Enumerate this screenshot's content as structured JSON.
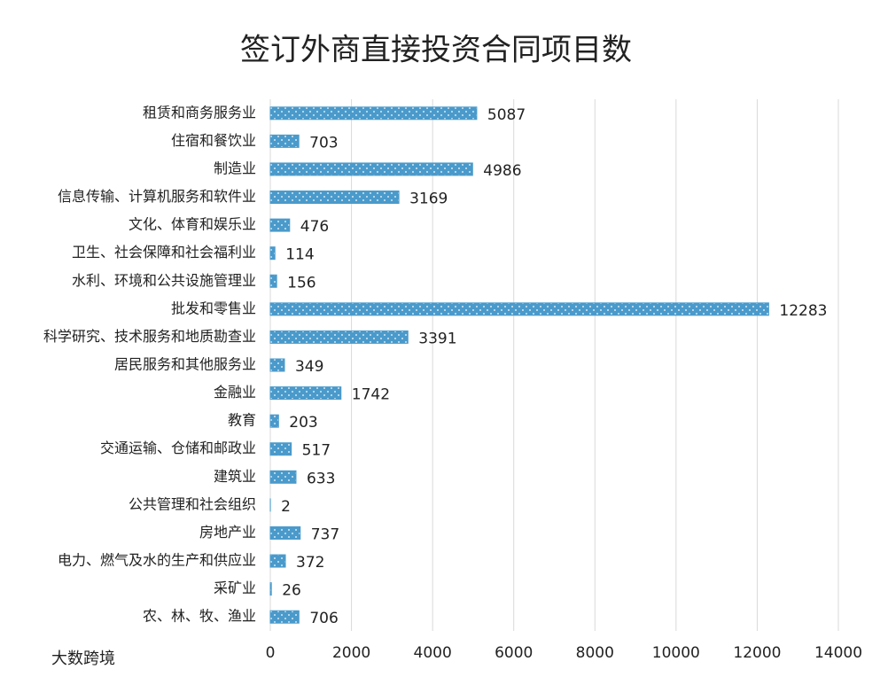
{
  "chart_data": {
    "type": "hbar",
    "title": "签订外商直接投资合同项目数",
    "categories": [
      "租赁和商务服务业",
      "住宿和餐饮业",
      "制造业",
      "信息传输、计算机服务和软件业",
      "文化、体育和娱乐业",
      "卫生、社会保障和社会福利业",
      "水利、环境和公共设施管理业",
      "批发和零售业",
      "科学研究、技术服务和地质勘查业",
      "居民服务和其他服务业",
      "金融业",
      "教育",
      "交通运输、仓储和邮政业",
      "建筑业",
      "公共管理和社会组织",
      "房地产业",
      "电力、燃气及水的生产和供应业",
      "采矿业",
      "农、林、牧、渔业"
    ],
    "values": [
      5087,
      703,
      4986,
      3169,
      476,
      114,
      156,
      12283,
      3391,
      349,
      1742,
      203,
      517,
      633,
      2,
      737,
      372,
      26,
      706
    ],
    "color": "#4a9acb",
    "xlim": [
      0,
      14000
    ],
    "xticks": [
      0,
      2000,
      4000,
      6000,
      8000,
      10000,
      12000,
      14000
    ],
    "grid": true,
    "watermark": "大数跨境"
  }
}
